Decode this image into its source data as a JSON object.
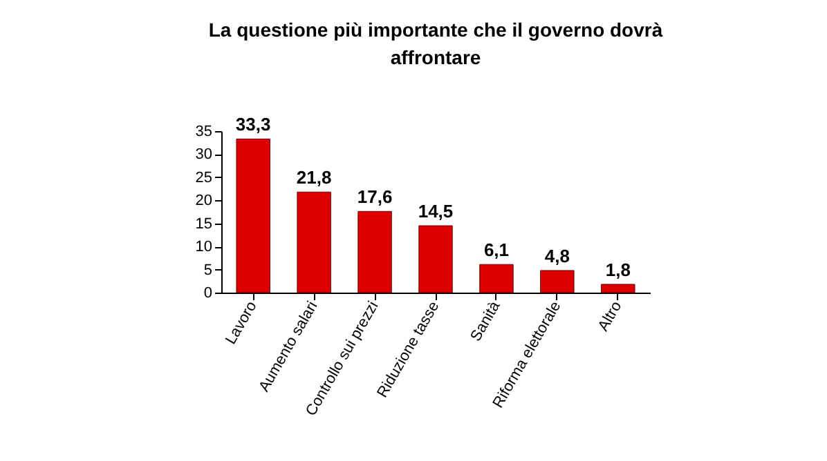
{
  "chart_data": {
    "type": "bar",
    "title": "La questione più importante che il governo dovrà affrontare",
    "categories": [
      "Lavoro",
      "Aumento salari",
      "Controllo sui prezzi",
      "Riduzione tasse",
      "Sanità",
      "Riforma elettorale",
      "Altro"
    ],
    "values": [
      33.3,
      21.8,
      17.6,
      14.5,
      6.1,
      4.8,
      1.8
    ],
    "color": "#dd0000",
    "ylim": [
      0,
      35
    ],
    "yticks": [
      0,
      5,
      10,
      15,
      20,
      25,
      30,
      35
    ],
    "value_labels": [
      "33,3",
      "21,8",
      "17,6",
      "14,5",
      "6,1",
      "4,8",
      "1,8"
    ],
    "grid": false
  }
}
